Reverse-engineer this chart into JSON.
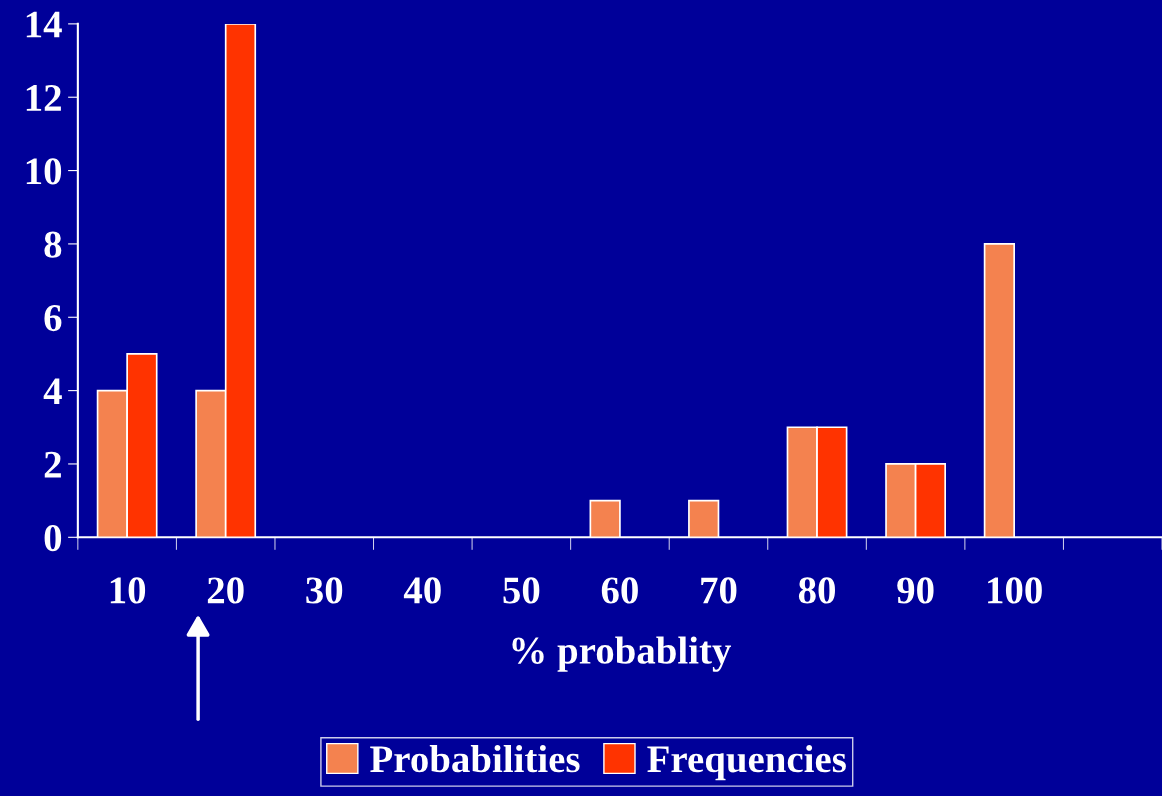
{
  "chart_data": {
    "type": "bar",
    "xlabel": "% probablity",
    "categories": [
      "10",
      "20",
      "30",
      "40",
      "50",
      "60",
      "70",
      "80",
      "90",
      "100",
      null
    ],
    "series": [
      {
        "name": "Probabilities",
        "color": "#f4824f",
        "values": [
          4,
          4,
          0,
          0,
          0,
          1,
          1,
          3,
          2,
          8,
          null
        ]
      },
      {
        "name": "Frequencies",
        "color": "#ff3300",
        "values": [
          5,
          14,
          0,
          0,
          0,
          0,
          0,
          3,
          2,
          0,
          null
        ]
      }
    ],
    "ylim": [
      0,
      14
    ],
    "yticks": [
      0,
      2,
      4,
      6,
      8,
      10,
      12,
      14
    ],
    "grid": false,
    "legend": "bottom"
  }
}
